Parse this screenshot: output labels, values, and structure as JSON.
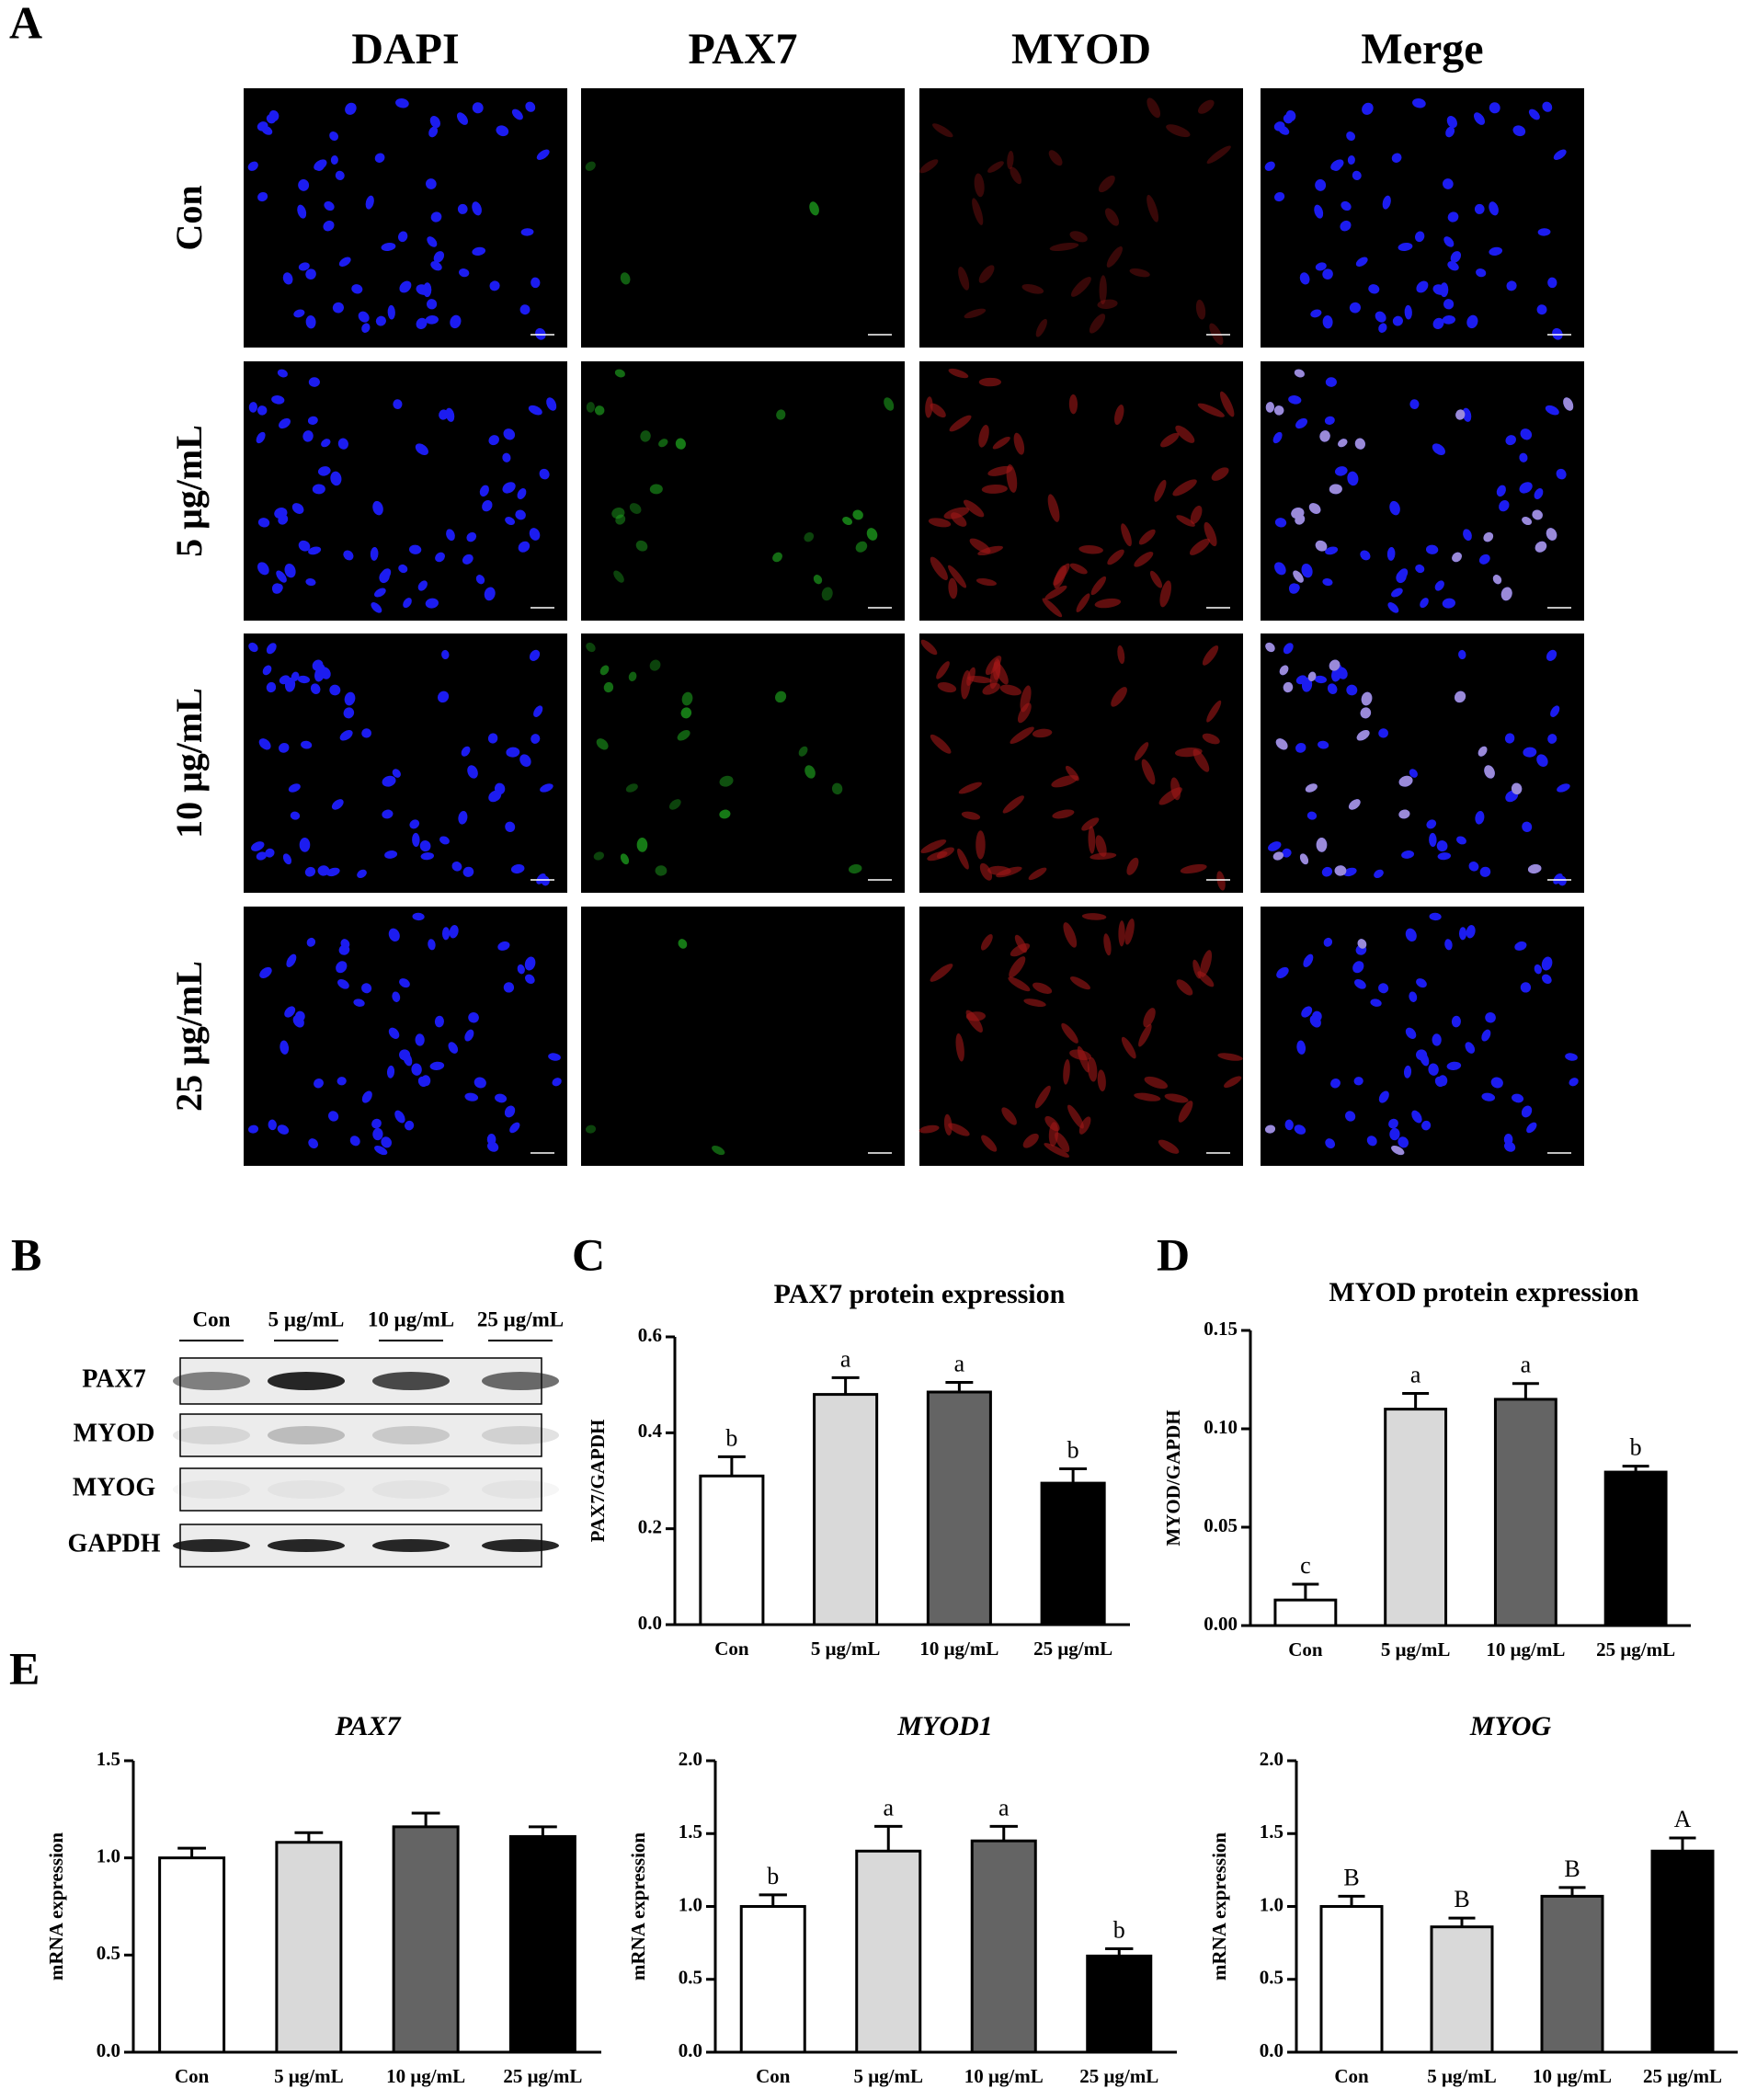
{
  "panel_labels": [
    "A",
    "B",
    "C",
    "D",
    "E"
  ],
  "panel_a": {
    "columns": [
      "DAPI",
      "PAX7",
      "MYOD",
      "Merge"
    ],
    "rows": [
      "Con",
      "5 μg/mL",
      "10 μg/mL",
      "25 μg/mL"
    ]
  },
  "panel_b": {
    "lanes": [
      "Con",
      "5 μg/mL",
      "10 μg/mL",
      "25 μg/mL"
    ],
    "bands": [
      "PAX7",
      "MYOD",
      "MYOG",
      "GAPDH"
    ]
  },
  "chart_data": [
    {
      "type": "bar",
      "title": "PAX7 protein expression",
      "ylabel": "PAX7/GAPDH",
      "categories": [
        "Con",
        "5 μg/mL",
        "10 μg/mL",
        "25 μg/mL"
      ],
      "values": [
        0.31,
        0.48,
        0.485,
        0.295
      ],
      "errors": [
        0.04,
        0.035,
        0.02,
        0.03
      ],
      "significance": [
        "b",
        "a",
        "a",
        "b"
      ],
      "colors": [
        "#ffffff",
        "#d9d9d9",
        "#646464",
        "#000000"
      ],
      "ylim": [
        0,
        0.6
      ],
      "yticks": [
        {
          "value": 0,
          "label": "0.0"
        },
        0.2,
        0.4,
        0.6
      ]
    },
    {
      "type": "bar",
      "title": "MYOD protein expression",
      "ylabel": "MYOD/GAPDH",
      "categories": [
        "Con",
        "5 μg/mL",
        "10 μg/mL",
        "25 μg/mL"
      ],
      "values": [
        0.013,
        0.11,
        0.115,
        0.078
      ],
      "errors": [
        0.008,
        0.008,
        0.008,
        0.003
      ],
      "significance": [
        "c",
        "a",
        "a",
        "b"
      ],
      "colors": [
        "#ffffff",
        "#d9d9d9",
        "#646464",
        "#000000"
      ],
      "ylim": [
        0,
        0.15
      ],
      "yticks": [
        {
          "value": 0,
          "label": "0.00"
        },
        0.05,
        {
          "value": 0.1,
          "label": "0.10"
        },
        0.15
      ]
    },
    {
      "type": "bar",
      "title": "PAX7",
      "ylabel": "mRNA expression",
      "categories": [
        "Con",
        "5 μg/mL",
        "10 μg/mL",
        "25 μg/mL"
      ],
      "values": [
        1.0,
        1.08,
        1.16,
        1.11
      ],
      "errors": [
        0.05,
        0.05,
        0.07,
        0.05
      ],
      "colors": [
        "#ffffff",
        "#d9d9d9",
        "#646464",
        "#000000"
      ],
      "ylim": [
        0,
        1.5
      ],
      "yticks": [
        {
          "value": 0,
          "label": "0.0"
        },
        0.5,
        {
          "value": 1,
          "label": "1.0"
        },
        1.5
      ]
    },
    {
      "type": "bar",
      "title": "MYOD1",
      "ylabel": "mRNA expression",
      "categories": [
        "Con",
        "5 μg/mL",
        "10 μg/mL",
        "25 μg/mL"
      ],
      "values": [
        1.0,
        1.38,
        1.45,
        0.66
      ],
      "errors": [
        0.08,
        0.17,
        0.1,
        0.05
      ],
      "significance": [
        "b",
        "a",
        "a",
        "b"
      ],
      "colors": [
        "#ffffff",
        "#d9d9d9",
        "#646464",
        "#000000"
      ],
      "ylim": [
        0,
        2
      ],
      "yticks": [
        {
          "value": 0,
          "label": "0.0"
        },
        0.5,
        {
          "value": 1,
          "label": "1.0"
        },
        1.5,
        {
          "value": 2,
          "label": "2.0"
        }
      ]
    },
    {
      "type": "bar",
      "title": "MYOG",
      "ylabel": "mRNA expression",
      "categories": [
        "Con",
        "5 μg/mL",
        "10 μg/mL",
        "25 μg/mL"
      ],
      "values": [
        1.0,
        0.86,
        1.07,
        1.38
      ],
      "errors": [
        0.07,
        0.06,
        0.06,
        0.09
      ],
      "significance": [
        "B",
        "B",
        "B",
        "A"
      ],
      "colors": [
        "#ffffff",
        "#d9d9d9",
        "#646464",
        "#000000"
      ],
      "ylim": [
        0,
        2
      ],
      "yticks": [
        {
          "value": 0,
          "label": "0.0"
        },
        0.5,
        {
          "value": 1,
          "label": "1.0"
        },
        1.5,
        {
          "value": 2,
          "label": "2.0"
        }
      ]
    }
  ]
}
